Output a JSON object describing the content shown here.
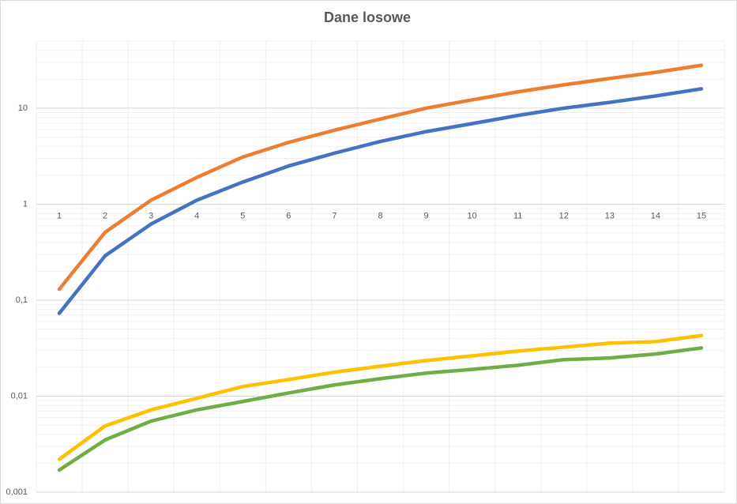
{
  "chart_data": {
    "type": "line",
    "title": "Dane losowe",
    "categories": [
      "1",
      "2",
      "3",
      "4",
      "5",
      "6",
      "7",
      "8",
      "9",
      "10",
      "11",
      "12",
      "13",
      "14",
      "15"
    ],
    "series": [
      {
        "color": "#4472c4",
        "values": [
          0.073,
          0.29,
          0.62,
          1.1,
          1.7,
          2.5,
          3.4,
          4.5,
          5.7,
          6.9,
          8.4,
          10,
          11.5,
          13.4,
          15.9
        ]
      },
      {
        "color": "#ed7d31",
        "values": [
          0.13,
          0.51,
          1.1,
          1.9,
          3.1,
          4.4,
          5.9,
          7.7,
          10,
          12.2,
          14.8,
          17.5,
          20.4,
          23.6,
          28
        ]
      },
      {
        "color": "#ffc000",
        "values": [
          0.0022,
          0.0049,
          0.0072,
          0.0095,
          0.0126,
          0.0149,
          0.0178,
          0.0205,
          0.0235,
          0.0263,
          0.0295,
          0.0324,
          0.0357,
          0.037,
          0.0428
        ]
      },
      {
        "color": "#70ad47",
        "values": [
          0.0017,
          0.0035,
          0.0055,
          0.0072,
          0.0088,
          0.0108,
          0.0131,
          0.0152,
          0.0174,
          0.019,
          0.021,
          0.024,
          0.025,
          0.0275,
          0.0318
        ]
      }
    ],
    "ylim": [
      0.001,
      50
    ],
    "yticks": [
      {
        "value": 0.001,
        "label": "0,001"
      },
      {
        "value": 0.01,
        "label": "0,01"
      },
      {
        "value": 0.1,
        "label": "0,1"
      },
      1,
      10
    ],
    "log_scale_y": true,
    "grid": true,
    "minor_grid": true,
    "x_grid": true,
    "x_axis_crosses_at": 1
  }
}
